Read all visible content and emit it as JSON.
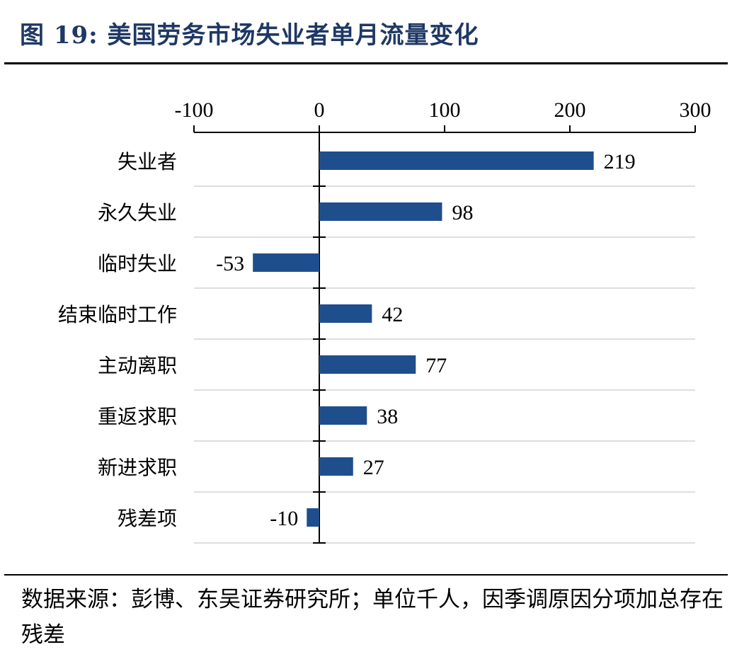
{
  "figure": {
    "title": "图 19:  美国劳务市场失业者单月流量变化",
    "note": "数据来源：彭博、东吴证券研究所；单位千人，因季调原因分项加总存在残差"
  },
  "chart_data": {
    "type": "bar",
    "orientation": "horizontal",
    "title": "美国劳务市场失业者单月流量变化",
    "xlabel": "",
    "ylabel": "",
    "unit": "千人",
    "xlim": [
      -100,
      300
    ],
    "xticks": [
      -100,
      0,
      100,
      200,
      300
    ],
    "categories": [
      "失业者",
      "永久失业",
      "临时失业",
      "结束临时工作",
      "主动离职",
      "重返求职",
      "新进求职",
      "残差项"
    ],
    "values": [
      219,
      98,
      -53,
      42,
      77,
      38,
      27,
      -10
    ],
    "data_labels": [
      "219",
      "98",
      "-53",
      "42",
      "77",
      "38",
      "27",
      "-10"
    ],
    "bar_color": "#1f4e8c",
    "grid": true,
    "legend": "none"
  }
}
